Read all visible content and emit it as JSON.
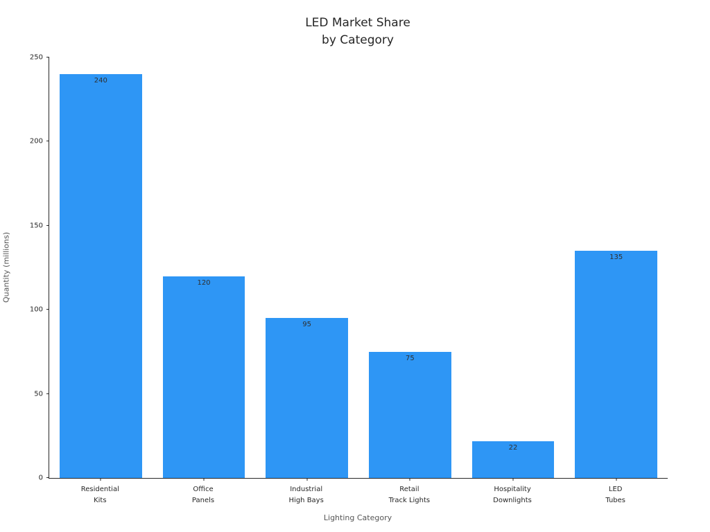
{
  "chart_data": {
    "type": "bar",
    "title": "LED Market Share\nby Category",
    "categories": [
      "Residential\nKits",
      "Office\nPanels",
      "Industrial\nHigh Bays",
      "Retail\nTrack Lights",
      "Hospitality\nDownlights",
      "LED\nTubes"
    ],
    "values": [
      240,
      120,
      95,
      75,
      22,
      135
    ],
    "value_labels": [
      "240",
      "120",
      "95",
      "75",
      "22",
      "135"
    ],
    "xlabel": "Lighting Category",
    "ylabel": "Quantity (millions)",
    "ylim": [
      0,
      250
    ],
    "yticks": [
      "0",
      "50",
      "100",
      "150",
      "200",
      "250"
    ],
    "ytick_values": [
      0,
      50,
      100,
      150,
      200,
      250
    ],
    "grid": false,
    "legend": "none",
    "bar_color": "#2e96f5"
  }
}
